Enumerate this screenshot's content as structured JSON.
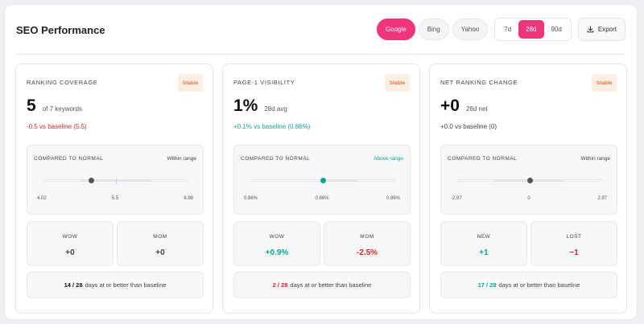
{
  "header": {
    "title": "SEO Performance",
    "engines": [
      "Google",
      "Bing",
      "Yahoo"
    ],
    "ranges": [
      "7d",
      "28d",
      "90d"
    ],
    "export_label": "Export"
  },
  "colors": {
    "accent": "#f0357a",
    "negative": "#e02424",
    "positive": "#0fa594",
    "badge_bg": "#fdeee4",
    "badge_fg": "#e8793a"
  },
  "cards": [
    {
      "label": "RANKING COVERAGE",
      "badge": "Stable",
      "value": "5",
      "value_sub": "of 7 keywords",
      "delta": "-0.5 vs baseline (5.5)",
      "normal": {
        "heading": "COMPARED TO NORMAL",
        "status": "Within range",
        "min_label": "4.02",
        "mid_label": "5.5",
        "max_label": "6.98",
        "min": 4.02,
        "max": 6.98,
        "current": 5.0,
        "baseline": 5.5,
        "band_low": 4.76,
        "band_high": 6.24
      },
      "mini_left": {
        "label": "WOW",
        "value": "+0"
      },
      "mini_right": {
        "label": "MOM",
        "value": "+0"
      },
      "footer": {
        "count": "14 / 28",
        "text": "days at or better than baseline"
      }
    },
    {
      "label": "PAGE-1 VISIBILITY",
      "badge": "Stable",
      "value": "1%",
      "value_sub": "28d avg",
      "delta": "+0.1% vs baseline (0.86%)",
      "normal": {
        "heading": "COMPARED TO NORMAL",
        "status": "Above range",
        "min_label": "0.86%",
        "mid_label": "0.86%",
        "max_label": "0.86%",
        "min": 0,
        "max": 1,
        "current": 0.5,
        "baseline": 0.5,
        "band_low": 0.5,
        "band_high": 0.74
      },
      "mini_left": {
        "label": "WOW",
        "value": "+0.9%"
      },
      "mini_right": {
        "label": "MOM",
        "value": "-2.5%"
      },
      "footer": {
        "count": "2 / 28",
        "text": "days at or better than baseline"
      }
    },
    {
      "label": "NET RANKING CHANGE",
      "badge": "Stable",
      "value": "+0",
      "value_sub": "28d net",
      "delta": "+0.0 vs baseline (0)",
      "normal": {
        "heading": "COMPARED TO NORMAL",
        "status": "Within range",
        "min_label": "-2.97",
        "mid_label": "0",
        "max_label": "2.97",
        "min": -2.97,
        "max": 2.97,
        "current": 0,
        "baseline": 0,
        "band_low": -1.48,
        "band_high": 1.48
      },
      "mini_left": {
        "label": "NEW",
        "value": "+1"
      },
      "mini_right": {
        "label": "LOST",
        "value": "−1"
      },
      "footer": {
        "count": "17 / 28",
        "text": "days at or better than baseline"
      }
    }
  ]
}
